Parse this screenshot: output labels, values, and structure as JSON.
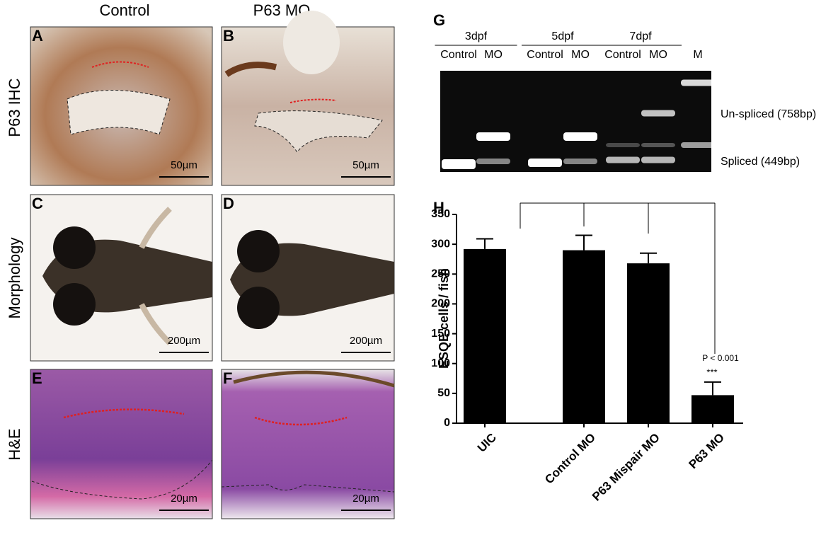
{
  "columns": [
    "Control",
    "P63 MO"
  ],
  "rows": [
    "P63 IHC",
    "Morphology",
    "H&E"
  ],
  "panels": [
    {
      "label": "A",
      "scale": "50µm"
    },
    {
      "label": "B",
      "scale": "50µm"
    },
    {
      "label": "C",
      "scale": "200µm"
    },
    {
      "label": "D",
      "scale": "200µm"
    },
    {
      "label": "E",
      "scale": "20µm"
    },
    {
      "label": "F",
      "scale": "20µm"
    }
  ],
  "gel": {
    "label": "G",
    "groups": [
      "3dpf",
      "5dpf",
      "7dpf"
    ],
    "lanes": [
      "Control",
      "MO",
      "Control",
      "MO",
      "Control",
      "MO",
      "M"
    ],
    "bands": [
      "Un-spliced (758bp)",
      "Spliced (449bp)"
    ]
  },
  "chart_data": {
    "type": "bar",
    "label": "H",
    "ylabel": "ESQE cells / fish",
    "categories": [
      "UIC",
      "Control  MO",
      "P63 Mispair MO",
      "P63 MO"
    ],
    "values": [
      292,
      290,
      268,
      47
    ],
    "errors": [
      17,
      25,
      17,
      22
    ],
    "color": "#000000",
    "ylim": [
      0,
      350
    ],
    "yticks": [
      0,
      50,
      100,
      150,
      200,
      250,
      300,
      350
    ],
    "annotations": [
      "P < 0.001",
      "***"
    ]
  }
}
